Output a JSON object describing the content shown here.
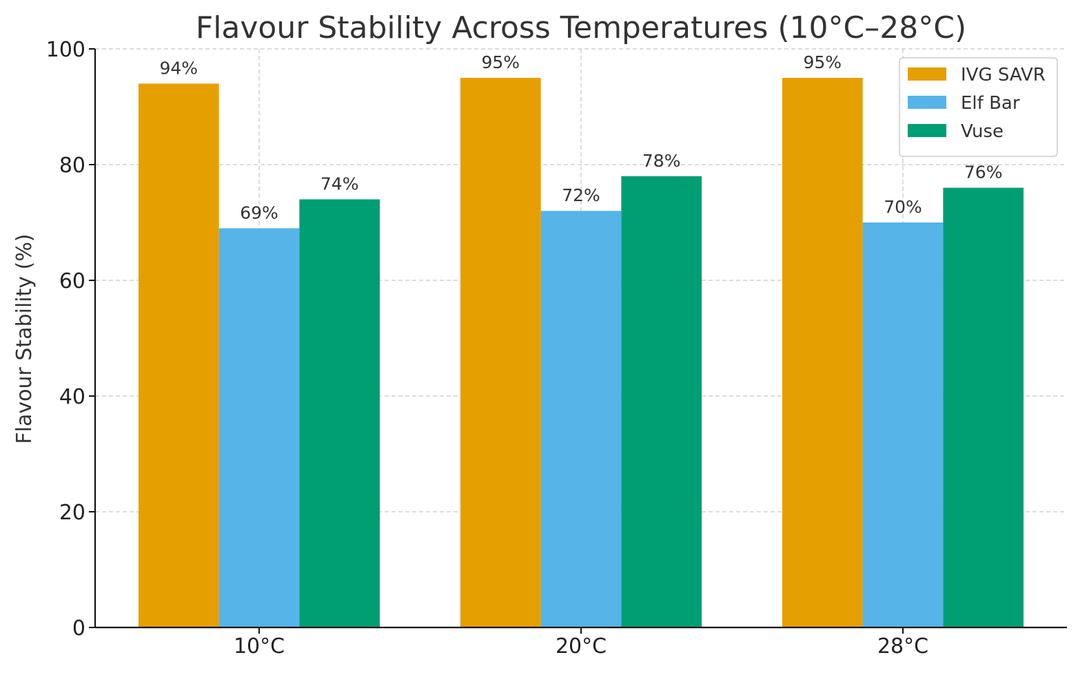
{
  "chart_data": {
    "type": "bar",
    "title": "Flavour Stability Across Temperatures (10°C–28°C)",
    "xlabel": "",
    "ylabel": "Flavour Stability (%)",
    "categories": [
      "10°C",
      "20°C",
      "28°C"
    ],
    "ylim": [
      0,
      100
    ],
    "yticks": [
      0,
      20,
      40,
      60,
      80,
      100
    ],
    "grid": true,
    "legend_position": "top-right",
    "series": [
      {
        "name": "IVG SAVR",
        "color": "#E69F00",
        "values": [
          94,
          95,
          95
        ],
        "labels": [
          "94%",
          "95%",
          "95%"
        ]
      },
      {
        "name": "Elf Bar",
        "color": "#56B4E9",
        "values": [
          69,
          72,
          70
        ],
        "labels": [
          "69%",
          "72%",
          "70%"
        ]
      },
      {
        "name": "Vuse",
        "color": "#009E73",
        "values": [
          74,
          78,
          76
        ],
        "labels": [
          "74%",
          "78%",
          "76%"
        ]
      }
    ]
  }
}
